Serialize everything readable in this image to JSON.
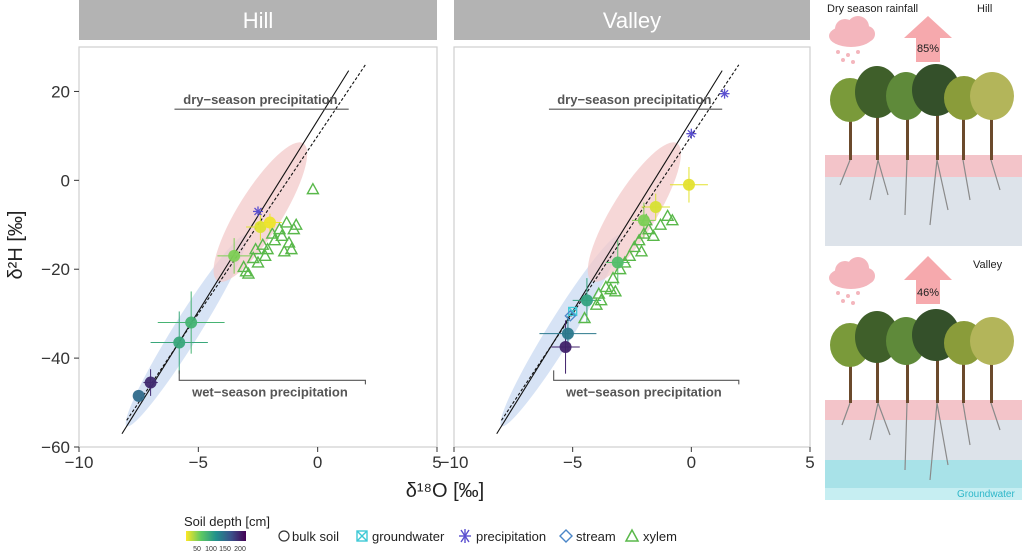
{
  "chart_data": {
    "type": "scatter",
    "panels": [
      {
        "title": "Hill",
        "annotations": [
          "dry−season precipitation",
          "wet−season precipitation"
        ],
        "bulk_soil": [
          {
            "x": -7.5,
            "y": -48.5,
            "depth": 130,
            "ex": 0,
            "ey": 0
          },
          {
            "x": -7.0,
            "y": -45.5,
            "depth": 175,
            "ex": 0.3,
            "ey": 3
          },
          {
            "x": -5.8,
            "y": -36.5,
            "depth": 80,
            "ex": 1.2,
            "ey": 7
          },
          {
            "x": -5.3,
            "y": -32.0,
            "depth": 70,
            "ex": 1.4,
            "ey": 7
          },
          {
            "x": -3.5,
            "y": -17.0,
            "depth": 40,
            "ex": 0.7,
            "ey": 4
          },
          {
            "x": -2.4,
            "y": -10.5,
            "depth": 10,
            "ex": 0.6,
            "ey": 3
          },
          {
            "x": -2.0,
            "y": -9.5,
            "depth": 5,
            "ex": 0.5,
            "ey": 2
          }
        ],
        "precipitation": [
          {
            "x": -2.5,
            "y": -7.0
          }
        ],
        "xylem": [
          {
            "x": -3.1,
            "y": -19.5
          },
          {
            "x": -3.0,
            "y": -20.5
          },
          {
            "x": -2.9,
            "y": -21.0
          },
          {
            "x": -2.7,
            "y": -17.5
          },
          {
            "x": -2.5,
            "y": -18.5
          },
          {
            "x": -2.3,
            "y": -14.5
          },
          {
            "x": -2.1,
            "y": -15.5
          },
          {
            "x": -1.9,
            "y": -12.0
          },
          {
            "x": -1.8,
            "y": -13.5
          },
          {
            "x": -1.6,
            "y": -11.0
          },
          {
            "x": -1.5,
            "y": -12.5
          },
          {
            "x": -1.3,
            "y": -9.5
          },
          {
            "x": -1.2,
            "y": -14.0
          },
          {
            "x": -1.0,
            "y": -11.0
          },
          {
            "x": -0.9,
            "y": -10.0
          },
          {
            "x": -2.6,
            "y": -15.5
          },
          {
            "x": -2.2,
            "y": -17.0
          },
          {
            "x": -1.4,
            "y": -16.0
          },
          {
            "x": -1.1,
            "y": -15.5
          },
          {
            "x": -0.2,
            "y": -2.0
          }
        ]
      },
      {
        "title": "Valley",
        "annotations": [
          "dry−season precipitation",
          "wet−season precipitation"
        ],
        "bulk_soil": [
          {
            "x": -5.3,
            "y": -37.5,
            "depth": 180,
            "ex": 0.6,
            "ey": 6
          },
          {
            "x": -5.2,
            "y": -34.5,
            "depth": 120,
            "ex": 1.2,
            "ey": 4
          },
          {
            "x": -4.4,
            "y": -27.0,
            "depth": 85,
            "ex": 0.6,
            "ey": 5
          },
          {
            "x": -3.1,
            "y": -18.5,
            "depth": 60,
            "ex": 0.5,
            "ey": 5
          },
          {
            "x": -2.0,
            "y": -9.0,
            "depth": 40,
            "ex": 0.5,
            "ey": 4
          },
          {
            "x": -1.5,
            "y": -6.0,
            "depth": 12,
            "ex": 0.6,
            "ey": 3
          },
          {
            "x": -0.1,
            "y": -1.0,
            "depth": 8,
            "ex": 0.8,
            "ey": 4
          }
        ],
        "groundwater": [
          {
            "x": -5.0,
            "y": -29.5
          }
        ],
        "precipitation": [
          {
            "x": 1.4,
            "y": 19.5
          },
          {
            "x": 0.0,
            "y": 10.5
          }
        ],
        "stream": [
          {
            "x": -5.1,
            "y": -30.5
          }
        ],
        "xylem": [
          {
            "x": -4.5,
            "y": -31.0
          },
          {
            "x": -4.0,
            "y": -28.0
          },
          {
            "x": -3.9,
            "y": -25.5
          },
          {
            "x": -3.8,
            "y": -27.0
          },
          {
            "x": -3.6,
            "y": -24.0
          },
          {
            "x": -3.4,
            "y": -24.5
          },
          {
            "x": -3.3,
            "y": -22.0
          },
          {
            "x": -3.2,
            "y": -25.0
          },
          {
            "x": -3.0,
            "y": -20.0
          },
          {
            "x": -2.8,
            "y": -18.5
          },
          {
            "x": -2.6,
            "y": -17.0
          },
          {
            "x": -2.4,
            "y": -15.0
          },
          {
            "x": -2.2,
            "y": -13.5
          },
          {
            "x": -2.0,
            "y": -12.0
          },
          {
            "x": -1.8,
            "y": -11.0
          },
          {
            "x": -1.6,
            "y": -12.5
          },
          {
            "x": -1.3,
            "y": -10.0
          },
          {
            "x": -1.0,
            "y": -8.0
          },
          {
            "x": -0.8,
            "y": -9.0
          },
          {
            "x": -2.1,
            "y": -16.0
          },
          {
            "x": -1.9,
            "y": -9.0
          }
        ]
      }
    ],
    "xlim": [
      -10,
      5
    ],
    "ylim": [
      -60,
      30
    ],
    "xticks": [
      -10,
      -5,
      0,
      5
    ],
    "yticks": [
      -60,
      -40,
      -20,
      0,
      20
    ],
    "xticklabels": [
      "−10",
      "−5",
      "0",
      "5"
    ],
    "yticklabels": [
      "−60",
      "−40",
      "−20",
      "0",
      "20"
    ],
    "xlabel": "δ¹⁸O [‰]",
    "ylabel": "δ²H [‰]",
    "lmwl": {
      "slope": 8.6,
      "intercept": 13.5
    },
    "gmwl": {
      "slope": 8.0,
      "intercept": 10.0
    },
    "legend": {
      "colorbar_title": "Soil depth [cm]",
      "colorbar_ticks": [
        "50",
        "100",
        "150",
        "200"
      ],
      "items": [
        "bulk soil",
        "groundwater",
        "precipitation",
        "stream",
        "xylem"
      ]
    }
  },
  "illustration": {
    "rain_label": "Dry season rainfall",
    "hill_label": "Hill",
    "hill_pct": "85%",
    "valley_label": "Valley",
    "valley_pct": "46%",
    "groundwater_label": "Groundwater"
  },
  "colors": {
    "strip_bg": "#b3b3b3",
    "xylem": "#59b84a",
    "precipitation": "#5a4fcf",
    "stream": "#4a86c8",
    "groundwater": "#3ec9d6",
    "dry_ellipse": "#f3c9c9",
    "wet_ellipse": "#c9daf2"
  }
}
